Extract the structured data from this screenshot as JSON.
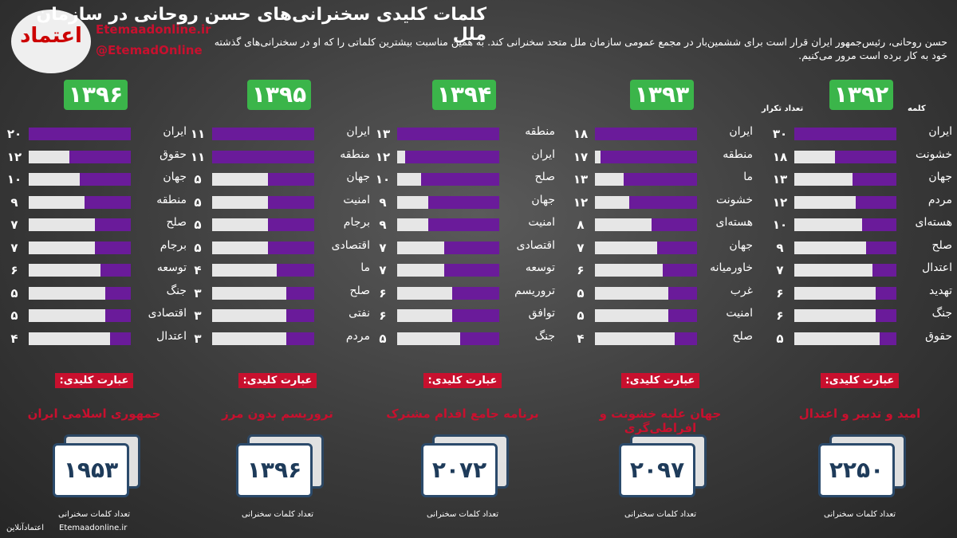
{
  "header": {
    "title": "کلمات کلیدی سخنرانی‌های حسن روحانی در سازمان ملل",
    "subtitle": "حسن روحانی، رئیس‌جمهور ایران قرار است برای ششمین‌بار در مجمع عمومی سازمان ملل متحد سخنرانی کند. به همین مناسبت بیشترین کلماتی را که او در سخنرانی‌های گذشته خود به کار برده است مرور می‌کنیم.",
    "logo": "اعتماد",
    "website": "Etemaadonline.ir",
    "handle": "@EtemadOnline"
  },
  "column_headers": {
    "word": "کلمه",
    "count": "تعداد تکرار"
  },
  "panels": [
    {
      "year": "۱۳۹۲",
      "words": [
        "ایران",
        "خشونت",
        "جهان",
        "مردم",
        "هسته‌ای",
        "صلح",
        "اعتدال",
        "تهدید",
        "جنگ",
        "حقوق"
      ],
      "values": [
        30,
        18,
        13,
        12,
        10,
        9,
        7,
        6,
        6,
        5
      ],
      "value_labels": [
        "۳۰",
        "۱۸",
        "۱۳",
        "۱۲",
        "۱۰",
        "۹",
        "۷",
        "۶",
        "۶",
        "۵"
      ],
      "key_label": "عبارت کلیدی:",
      "key_phrase": "امید و تدبیر و اعتدال",
      "total": "۲۲۵۰",
      "total_caption": "تعداد کلمات سخنرانی"
    },
    {
      "year": "۱۳۹۳",
      "words": [
        "ایران",
        "منطقه",
        "ما",
        "خشونت",
        "هسته‌ای",
        "جهان",
        "خاورمیانه",
        "غرب",
        "امنیت",
        "صلح"
      ],
      "values": [
        18,
        17,
        13,
        12,
        8,
        7,
        6,
        5,
        5,
        4
      ],
      "value_labels": [
        "۱۸",
        "۱۷",
        "۱۳",
        "۱۲",
        "۸",
        "۷",
        "۶",
        "۵",
        "۵",
        "۴"
      ],
      "key_label": "عبارت کلیدی:",
      "key_phrase": "جهان علیه خشونت و افراطی‌گری",
      "total": "۲۰۹۷",
      "total_caption": "تعداد کلمات سخنرانی"
    },
    {
      "year": "۱۳۹۴",
      "words": [
        "منطقه",
        "ایران",
        "صلح",
        "جهان",
        "امنیت",
        "اقتصادی",
        "توسعه",
        "تروریسم",
        "توافق",
        "جنگ"
      ],
      "values": [
        13,
        12,
        10,
        9,
        9,
        7,
        7,
        6,
        6,
        5
      ],
      "value_labels": [
        "۱۳",
        "۱۲",
        "۱۰",
        "۹",
        "۹",
        "۷",
        "۷",
        "۶",
        "۶",
        "۵"
      ],
      "key_label": "عبارت کلیدی:",
      "key_phrase": "برنامه جامع اقدام مشترک",
      "total": "۲۰۷۲",
      "total_caption": "تعداد کلمات سخنرانی"
    },
    {
      "year": "۱۳۹۵",
      "words": [
        "ایران",
        "منطقه",
        "جهان",
        "امنیت",
        "برجام",
        "اقتصادی",
        "ما",
        "صلح",
        "نفتی",
        "مردم"
      ],
      "values": [
        11,
        11,
        5,
        5,
        5,
        5,
        4,
        3,
        3,
        3
      ],
      "value_labels": [
        "۱۱",
        "۱۱",
        "۵",
        "۵",
        "۵",
        "۵",
        "۴",
        "۳",
        "۳",
        "۳"
      ],
      "key_label": "عبارت کلیدی:",
      "key_phrase": "تروریسم بدون مرز",
      "total": "۱۳۹۶",
      "total_caption": "تعداد کلمات سخنرانی"
    },
    {
      "year": "۱۳۹۶",
      "words": [
        "ایران",
        "حقوق",
        "جهان",
        "منطقه",
        "صلح",
        "برجام",
        "توسعه",
        "جنگ",
        "اقتصادی",
        "اعتدال"
      ],
      "values": [
        20,
        12,
        10,
        9,
        7,
        7,
        6,
        5,
        5,
        4
      ],
      "value_labels": [
        "۲۰",
        "۱۲",
        "۱۰",
        "۹",
        "۷",
        "۷",
        "۶",
        "۵",
        "۵",
        "۴"
      ],
      "key_label": "عبارت کلیدی:",
      "key_phrase": "جمهوری اسلامی ایران",
      "total": "۱۹۵۳",
      "total_caption": "تعداد کلمات سخنرانی"
    }
  ],
  "footer": {
    "name": "اعتمادآنلاین",
    "website": "Etemaadonline.ir"
  }
}
